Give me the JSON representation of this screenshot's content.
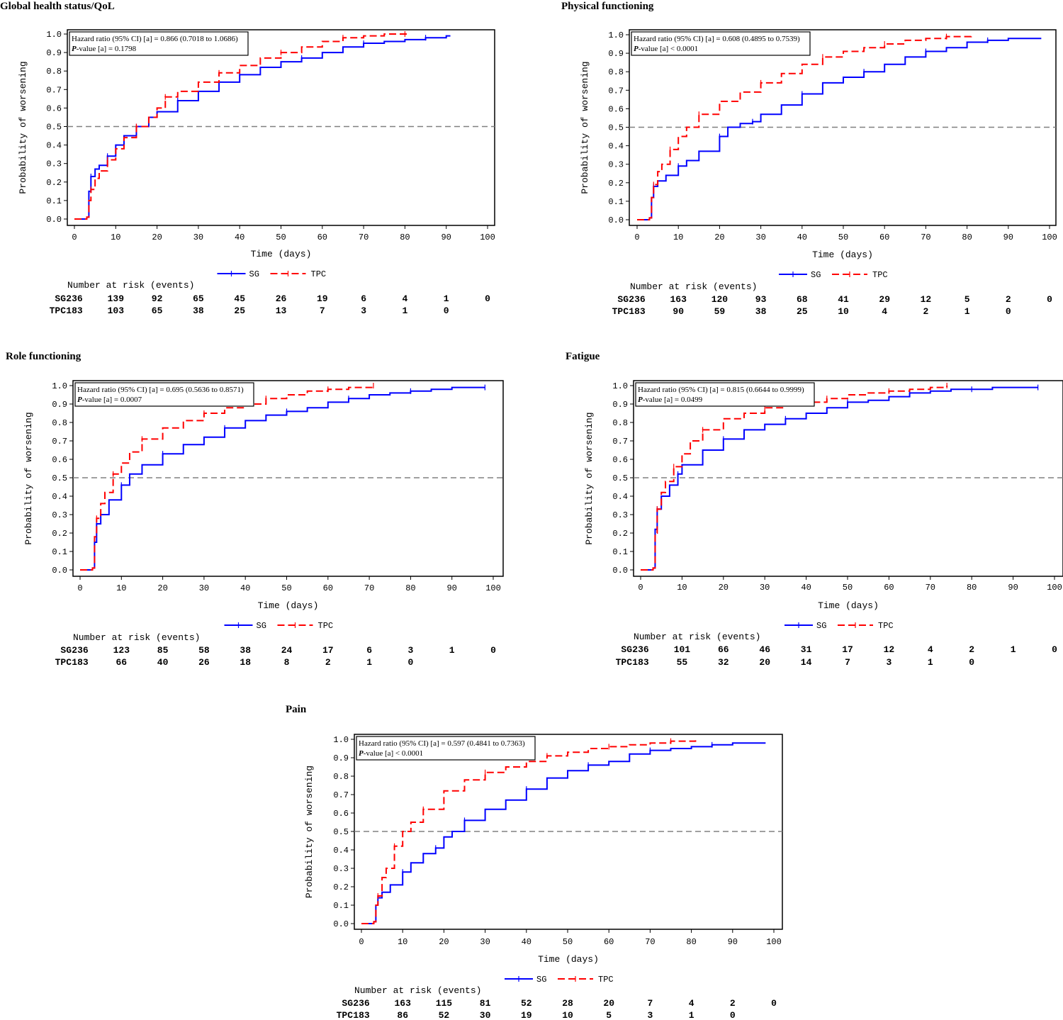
{
  "colors": {
    "sg": "#0000ff",
    "tpc": "#ff0000",
    "median_line": "#808080",
    "frame": "#000000"
  },
  "common": {
    "ylabel": "Probability of worsening",
    "xlabel": "Time (days)",
    "legend": [
      "SG",
      "TPC"
    ],
    "risk_header": "Number at risk (events)",
    "risk_groups": [
      "SG",
      "TPC"
    ],
    "hr_prefix": "Hazard ratio (95% CI) [a] = ",
    "p_label": "P",
    "p_suffix": "-value [a] "
  },
  "chart_data": [
    {
      "type": "line",
      "title": "Global health status/QoL",
      "xlabel": "Time (days)",
      "ylabel": "Probability of worsening",
      "xlim": [
        0,
        100
      ],
      "ylim": [
        0,
        1.0
      ],
      "x_ticks": [
        0,
        10,
        20,
        30,
        40,
        50,
        60,
        70,
        80,
        90,
        100
      ],
      "y_ticks": [
        "0.0",
        "0.1",
        "0.2",
        "0.3",
        "0.4",
        "0.5",
        "0.6",
        "0.7",
        "0.8",
        "0.9",
        "1.0"
      ],
      "reference_line": 0.5,
      "hr_value": "0.866 (0.7018 to 1.0686)",
      "p_value": "= 0.1798",
      "series": [
        {
          "name": "SG",
          "x": [
            0,
            3,
            3.5,
            4,
            5,
            6,
            8,
            10,
            12,
            15,
            18,
            20,
            25,
            30,
            35,
            40,
            45,
            50,
            55,
            60,
            65,
            70,
            75,
            80,
            85,
            90,
            91
          ],
          "y": [
            0,
            0.01,
            0.15,
            0.23,
            0.27,
            0.29,
            0.34,
            0.4,
            0.45,
            0.5,
            0.55,
            0.58,
            0.64,
            0.69,
            0.74,
            0.78,
            0.82,
            0.85,
            0.87,
            0.9,
            0.93,
            0.95,
            0.96,
            0.97,
            0.98,
            0.99,
            0.99
          ]
        },
        {
          "name": "TPC",
          "x": [
            0,
            3,
            3.5,
            4,
            5,
            6,
            8,
            10,
            12,
            15,
            18,
            20,
            22,
            25,
            30,
            35,
            40,
            45,
            50,
            55,
            60,
            65,
            70,
            75,
            80,
            81
          ],
          "y": [
            0,
            0.01,
            0.1,
            0.16,
            0.22,
            0.26,
            0.32,
            0.38,
            0.44,
            0.5,
            0.55,
            0.6,
            0.66,
            0.69,
            0.74,
            0.79,
            0.83,
            0.87,
            0.9,
            0.93,
            0.96,
            0.98,
            0.99,
            1.0,
            1.0,
            1.0
          ]
        }
      ],
      "risk_times": [
        0,
        10,
        20,
        30,
        40,
        50,
        60,
        70,
        80,
        90,
        100
      ],
      "risk": {
        "SG": [
          "236",
          "139",
          "92",
          "65",
          "45",
          "26",
          "19",
          "6",
          "4",
          "1",
          "0"
        ],
        "TPC": [
          "183",
          "103",
          "65",
          "38",
          "25",
          "13",
          "7",
          "3",
          "1",
          "0"
        ]
      }
    },
    {
      "type": "line",
      "title": "Physical functioning",
      "xlabel": "Time (days)",
      "ylabel": "Probability of worsening",
      "xlim": [
        0,
        100
      ],
      "ylim": [
        0,
        1.0
      ],
      "x_ticks": [
        0,
        10,
        20,
        30,
        40,
        50,
        60,
        70,
        80,
        90,
        100
      ],
      "y_ticks": [
        "0.0",
        "0.1",
        "0.2",
        "0.3",
        "0.4",
        "0.5",
        "0.6",
        "0.7",
        "0.8",
        "0.9",
        "1.0"
      ],
      "reference_line": 0.5,
      "hr_value": "0.608 (0.4895 to 0.7539)",
      "p_value": "< 0.0001",
      "series": [
        {
          "name": "SG",
          "x": [
            0,
            3,
            3.5,
            4,
            5,
            7,
            10,
            12,
            15,
            20,
            22,
            25,
            28,
            30,
            35,
            40,
            45,
            50,
            55,
            60,
            65,
            70,
            75,
            80,
            85,
            90,
            98
          ],
          "y": [
            0,
            0.01,
            0.12,
            0.18,
            0.21,
            0.24,
            0.29,
            0.32,
            0.37,
            0.45,
            0.5,
            0.52,
            0.53,
            0.57,
            0.62,
            0.68,
            0.74,
            0.77,
            0.8,
            0.84,
            0.88,
            0.91,
            0.93,
            0.96,
            0.97,
            0.98,
            0.98
          ]
        },
        {
          "name": "TPC",
          "x": [
            0,
            3,
            3.5,
            4,
            5,
            6,
            8,
            10,
            12,
            15,
            20,
            25,
            30,
            35,
            40,
            45,
            50,
            55,
            60,
            65,
            70,
            75,
            80,
            81
          ],
          "y": [
            0,
            0.01,
            0.12,
            0.19,
            0.26,
            0.3,
            0.38,
            0.45,
            0.5,
            0.57,
            0.64,
            0.69,
            0.74,
            0.79,
            0.84,
            0.88,
            0.91,
            0.93,
            0.95,
            0.97,
            0.98,
            0.99,
            0.99,
            1.0
          ]
        }
      ],
      "risk_times": [
        0,
        10,
        20,
        30,
        40,
        50,
        60,
        70,
        80,
        90,
        100
      ],
      "risk": {
        "SG": [
          "236",
          "163",
          "120",
          "93",
          "68",
          "41",
          "29",
          "12",
          "5",
          "2",
          "0"
        ],
        "TPC": [
          "183",
          "90",
          "59",
          "38",
          "25",
          "10",
          "4",
          "2",
          "1",
          "0"
        ]
      }
    },
    {
      "type": "line",
      "title": "Role functioning",
      "xlabel": "Time (days)",
      "ylabel": "Probability of worsening",
      "xlim": [
        0,
        100
      ],
      "ylim": [
        0,
        1.0
      ],
      "x_ticks": [
        0,
        10,
        20,
        30,
        40,
        50,
        60,
        70,
        80,
        90,
        100
      ],
      "y_ticks": [
        "0.0",
        "0.1",
        "0.2",
        "0.3",
        "0.4",
        "0.5",
        "0.6",
        "0.7",
        "0.8",
        "0.9",
        "1.0"
      ],
      "reference_line": 0.5,
      "hr_value": "0.695 (0.5636 to 0.8571)",
      "p_value": "= 0.0007",
      "series": [
        {
          "name": "SG",
          "x": [
            0,
            3,
            3.5,
            4,
            5,
            7,
            10,
            12,
            15,
            20,
            25,
            30,
            35,
            40,
            45,
            50,
            55,
            60,
            65,
            70,
            75,
            80,
            85,
            90,
            98
          ],
          "y": [
            0,
            0.01,
            0.15,
            0.25,
            0.3,
            0.38,
            0.46,
            0.52,
            0.57,
            0.63,
            0.68,
            0.72,
            0.77,
            0.81,
            0.84,
            0.86,
            0.88,
            0.91,
            0.93,
            0.95,
            0.96,
            0.97,
            0.98,
            0.99,
            0.99
          ]
        },
        {
          "name": "TPC",
          "x": [
            0,
            3,
            3.5,
            4,
            5,
            6,
            8,
            10,
            12,
            15,
            20,
            25,
            30,
            35,
            40,
            45,
            50,
            55,
            60,
            65,
            70,
            71
          ],
          "y": [
            0,
            0.01,
            0.18,
            0.28,
            0.36,
            0.42,
            0.52,
            0.58,
            0.64,
            0.71,
            0.77,
            0.81,
            0.85,
            0.88,
            0.9,
            0.93,
            0.95,
            0.97,
            0.98,
            0.99,
            0.99,
            1.0
          ]
        }
      ],
      "risk_times": [
        0,
        10,
        20,
        30,
        40,
        50,
        60,
        70,
        80,
        90,
        100
      ],
      "risk": {
        "SG": [
          "236",
          "123",
          "85",
          "58",
          "38",
          "24",
          "17",
          "6",
          "3",
          "1",
          "0"
        ],
        "TPC": [
          "183",
          "66",
          "40",
          "26",
          "18",
          "8",
          "2",
          "1",
          "0"
        ]
      }
    },
    {
      "type": "line",
      "title": "Fatigue",
      "xlabel": "Time (days)",
      "ylabel": "Probability of worsening",
      "xlim": [
        0,
        100
      ],
      "ylim": [
        0,
        1.0
      ],
      "x_ticks": [
        0,
        10,
        20,
        30,
        40,
        50,
        60,
        70,
        80,
        90,
        100
      ],
      "y_ticks": [
        "0.0",
        "0.1",
        "0.2",
        "0.3",
        "0.4",
        "0.5",
        "0.6",
        "0.7",
        "0.8",
        "0.9",
        "1.0"
      ],
      "reference_line": 0.5,
      "hr_value": "0.815 (0.6644 to 0.9999)",
      "p_value": "= 0.0499",
      "series": [
        {
          "name": "SG",
          "x": [
            0,
            3,
            3.5,
            4,
            5,
            7,
            9,
            10,
            15,
            20,
            25,
            30,
            35,
            40,
            45,
            50,
            55,
            60,
            65,
            70,
            75,
            80,
            85,
            90,
            96
          ],
          "y": [
            0,
            0.01,
            0.22,
            0.33,
            0.4,
            0.46,
            0.52,
            0.57,
            0.65,
            0.71,
            0.76,
            0.79,
            0.82,
            0.85,
            0.88,
            0.91,
            0.92,
            0.94,
            0.96,
            0.97,
            0.98,
            0.98,
            0.99,
            0.99,
            0.99
          ]
        },
        {
          "name": "TPC",
          "x": [
            0,
            3,
            3.5,
            4,
            5,
            6,
            8,
            10,
            12,
            15,
            20,
            25,
            30,
            35,
            40,
            45,
            50,
            55,
            60,
            65,
            70,
            74
          ],
          "y": [
            0,
            0.01,
            0.2,
            0.33,
            0.42,
            0.48,
            0.56,
            0.63,
            0.7,
            0.76,
            0.82,
            0.85,
            0.88,
            0.9,
            0.91,
            0.93,
            0.95,
            0.96,
            0.97,
            0.98,
            0.99,
            1.0
          ]
        }
      ],
      "risk_times": [
        0,
        10,
        20,
        30,
        40,
        50,
        60,
        70,
        80,
        90,
        100
      ],
      "risk": {
        "SG": [
          "236",
          "101",
          "66",
          "46",
          "31",
          "17",
          "12",
          "4",
          "2",
          "1",
          "0"
        ],
        "TPC": [
          "183",
          "55",
          "32",
          "20",
          "14",
          "7",
          "3",
          "1",
          "0"
        ]
      }
    },
    {
      "type": "line",
      "title": "Pain",
      "xlabel": "Time (days)",
      "ylabel": "Probability of worsening",
      "xlim": [
        0,
        100
      ],
      "ylim": [
        0,
        1.0
      ],
      "x_ticks": [
        0,
        10,
        20,
        30,
        40,
        50,
        60,
        70,
        80,
        90,
        100
      ],
      "y_ticks": [
        "0.0",
        "0.1",
        "0.2",
        "0.3",
        "0.4",
        "0.5",
        "0.6",
        "0.7",
        "0.8",
        "0.9",
        "1.0"
      ],
      "reference_line": 0.5,
      "hr_value": "0.597 (0.4841 to 0.7363)",
      "p_value": "< 0.0001",
      "series": [
        {
          "name": "SG",
          "x": [
            0,
            3,
            3.5,
            4,
            5,
            7,
            10,
            12,
            15,
            18,
            20,
            22,
            25,
            30,
            35,
            40,
            45,
            50,
            55,
            60,
            65,
            70,
            75,
            80,
            85,
            90,
            98
          ],
          "y": [
            0,
            0.01,
            0.1,
            0.14,
            0.17,
            0.21,
            0.28,
            0.33,
            0.38,
            0.41,
            0.47,
            0.5,
            0.56,
            0.62,
            0.67,
            0.73,
            0.79,
            0.83,
            0.86,
            0.88,
            0.92,
            0.94,
            0.95,
            0.96,
            0.97,
            0.98,
            0.98
          ]
        },
        {
          "name": "TPC",
          "x": [
            0,
            3,
            3.5,
            4,
            5,
            6,
            8,
            10,
            12,
            15,
            20,
            25,
            30,
            35,
            40,
            45,
            50,
            55,
            60,
            65,
            70,
            75,
            80,
            81
          ],
          "y": [
            0,
            0.01,
            0.1,
            0.15,
            0.25,
            0.3,
            0.42,
            0.5,
            0.55,
            0.62,
            0.72,
            0.78,
            0.82,
            0.85,
            0.88,
            0.91,
            0.93,
            0.95,
            0.96,
            0.97,
            0.98,
            0.99,
            0.99,
            1.0
          ]
        }
      ],
      "risk_times": [
        0,
        10,
        20,
        30,
        40,
        50,
        60,
        70,
        80,
        90,
        100
      ],
      "risk": {
        "SG": [
          "236",
          "163",
          "115",
          "81",
          "52",
          "28",
          "20",
          "7",
          "4",
          "2",
          "0"
        ],
        "TPC": [
          "183",
          "86",
          "52",
          "30",
          "19",
          "10",
          "5",
          "3",
          "1",
          "0"
        ]
      }
    }
  ]
}
